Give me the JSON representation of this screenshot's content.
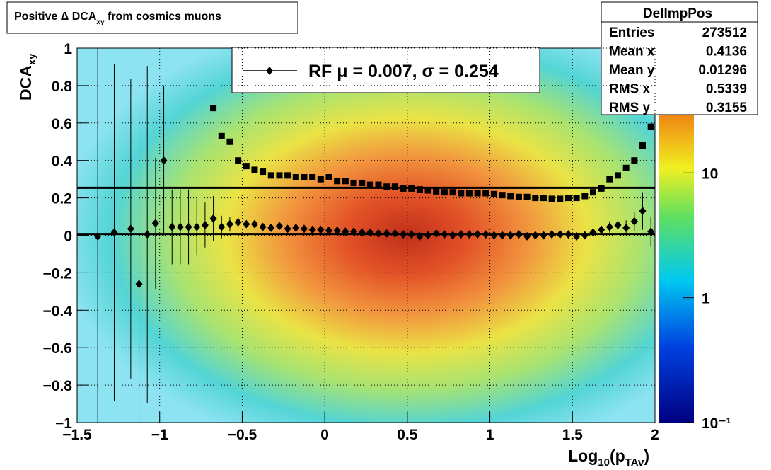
{
  "chart_data": {
    "type": "profile2d",
    "title": [
      "Positive Δ DCA",
      "xy",
      " from cosmics muons"
    ],
    "xlabel": [
      "Log",
      "10",
      "(p",
      "TAv",
      ")"
    ],
    "ylabel": [
      "DCA",
      "xy"
    ],
    "xlim": [
      -1.5,
      2
    ],
    "xticks": [
      {
        "value": -1.5,
        "label": "−1.5"
      },
      {
        "value": -1,
        "label": "−1"
      },
      {
        "value": -0.5,
        "label": "−0.5"
      },
      0,
      0.5,
      1,
      1.5,
      2
    ],
    "ylim": [
      -1,
      1
    ],
    "yticks": [
      {
        "value": -1,
        "label": "−1"
      },
      {
        "value": -0.8,
        "label": "−0.8"
      },
      {
        "value": -0.6,
        "label": "−0.6"
      },
      {
        "value": -0.4,
        "label": "−0.4"
      },
      {
        "value": -0.2,
        "label": "−0.2"
      },
      0,
      0.2,
      0.4,
      0.6,
      0.8,
      1
    ],
    "zlim": [
      0.1,
      100
    ],
    "zticks": [
      {
        "value": 0.1,
        "label": "10⁻¹"
      },
      1,
      10
    ],
    "zlog": true,
    "grid": true,
    "x": [
      -1.375,
      -1.275,
      -1.175,
      -1.125,
      -1.075,
      -1.025,
      -0.975,
      -0.925,
      -0.875,
      -0.825,
      -0.775,
      -0.725,
      -0.675,
      -0.625,
      -0.575,
      -0.525,
      -0.475,
      -0.425,
      -0.375,
      -0.325,
      -0.275,
      -0.225,
      -0.175,
      -0.125,
      -0.075,
      -0.025,
      0.025,
      0.075,
      0.125,
      0.175,
      0.225,
      0.275,
      0.325,
      0.375,
      0.425,
      0.475,
      0.525,
      0.575,
      0.625,
      0.675,
      0.725,
      0.775,
      0.825,
      0.875,
      0.925,
      0.975,
      1.025,
      1.075,
      1.125,
      1.175,
      1.225,
      1.275,
      1.325,
      1.375,
      1.425,
      1.475,
      1.525,
      1.575,
      1.625,
      1.675,
      1.725,
      1.775,
      1.825,
      1.875,
      1.925,
      1.975
    ],
    "series": [
      {
        "marker": "square",
        "color": "#000000",
        "values": [
          null,
          null,
          null,
          null,
          null,
          null,
          null,
          null,
          null,
          null,
          null,
          null,
          0.68,
          0.53,
          0.5,
          0.4,
          0.37,
          0.35,
          0.34,
          0.32,
          0.32,
          0.32,
          0.31,
          0.31,
          0.31,
          0.3,
          0.31,
          0.29,
          0.29,
          0.28,
          0.28,
          0.27,
          0.27,
          0.26,
          0.26,
          0.25,
          0.25,
          0.245,
          0.24,
          0.235,
          0.23,
          0.23,
          0.225,
          0.225,
          0.225,
          0.225,
          0.22,
          0.215,
          0.21,
          0.205,
          0.205,
          0.2,
          0.2,
          0.195,
          0.195,
          0.2,
          0.2,
          0.21,
          0.23,
          0.25,
          0.3,
          0.32,
          0.36,
          0.4,
          0.48,
          0.58
        ]
      },
      {
        "marker": "diamond",
        "color": "#000000",
        "values": [
          -0.005,
          0.015,
          0.035,
          -0.26,
          0.005,
          0.065,
          0.4,
          0.045,
          0.045,
          0.045,
          0.045,
          0.055,
          0.09,
          0.045,
          0.06,
          0.07,
          0.06,
          0.06,
          0.045,
          0.04,
          0.05,
          0.035,
          0.04,
          0.035,
          0.03,
          0.03,
          0.025,
          0.025,
          0.02,
          0.02,
          0.015,
          0.015,
          0.01,
          0.01,
          0.01,
          0.005,
          0.005,
          -0.005,
          0,
          0.01,
          0.005,
          0,
          0.005,
          0.005,
          0.005,
          0.005,
          0,
          0,
          0,
          0.005,
          -0.005,
          0,
          0,
          0.005,
          0.005,
          0.005,
          -0.005,
          0,
          0.015,
          0.03,
          0.045,
          0.055,
          0.04,
          0.075,
          0.13,
          0.02
        ],
        "errors": [
          1.2,
          0.9,
          0.8,
          0.9,
          0.9,
          0.35,
          0.4,
          0.2,
          0.2,
          0.2,
          0.15,
          0.12,
          0.12,
          0.06,
          0.04,
          0.03,
          0.01,
          0.01,
          0.01,
          0.01,
          0.01,
          0.01,
          0.01,
          0.01,
          0.01,
          0.01,
          0.01,
          0.01,
          0.01,
          0.01,
          0.01,
          0.01,
          0.01,
          0.01,
          0.01,
          0.01,
          0.01,
          0.01,
          0.01,
          0.01,
          0.01,
          0.01,
          0.01,
          0.01,
          0.01,
          0.01,
          0.01,
          0.01,
          0.01,
          0.01,
          0.01,
          0.01,
          0.01,
          0.01,
          0.01,
          0.01,
          0.01,
          0.01,
          0.02,
          0.02,
          0.03,
          0.03,
          0.04,
          0.05,
          0.1,
          0.08
        ]
      }
    ],
    "hlines": [
      0.254,
      0.007
    ],
    "legend_label": "RF μ =  0.007, σ =   0.254",
    "stats": {
      "title": "DelImpPos",
      "rows": [
        [
          "Entries",
          273512
        ],
        [
          "Mean x",
          0.4136
        ],
        [
          "Mean y",
          0.01296
        ],
        [
          "RMS x",
          0.5339
        ],
        [
          "RMS y",
          0.3155
        ]
      ]
    }
  }
}
